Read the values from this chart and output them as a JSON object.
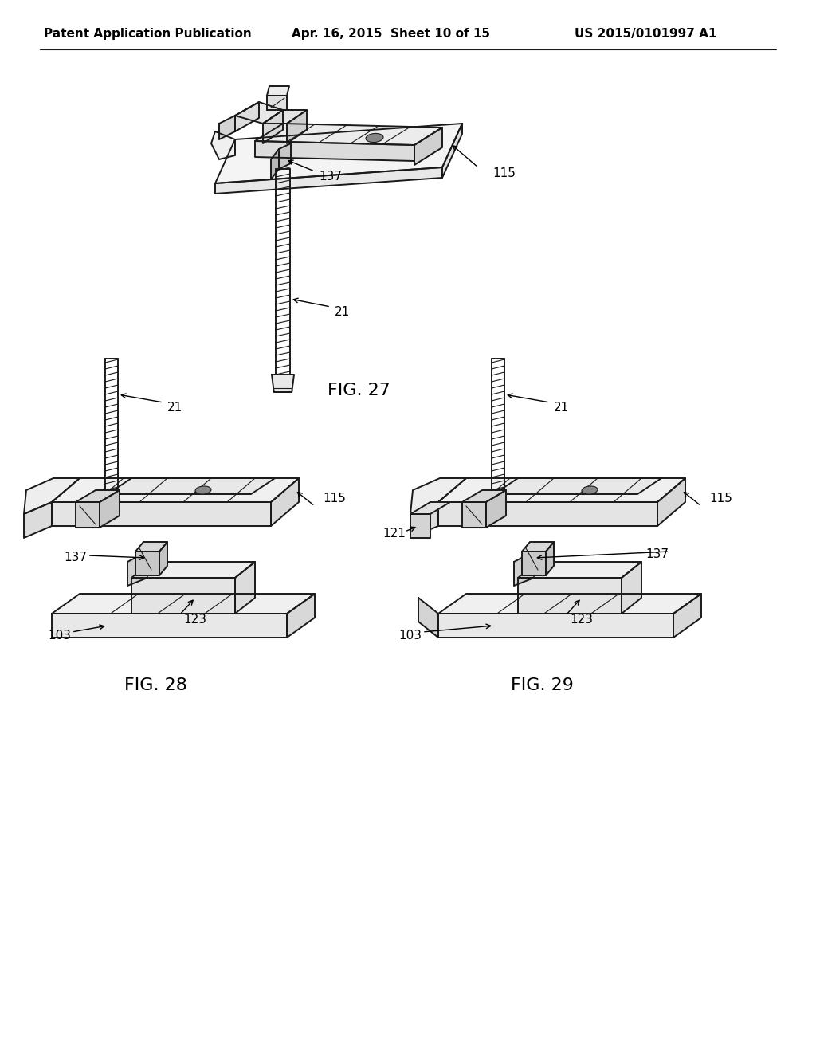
{
  "bg_color": "#ffffff",
  "fig_width": 10.24,
  "fig_height": 13.2,
  "dpi": 100,
  "header_left": "Patent Application Publication",
  "header_mid": "Apr. 16, 2015  Sheet 10 of 15",
  "header_right": "US 2015/0101997 A1",
  "header_fontsize": 11,
  "fig27_label": "FIG. 27",
  "fig28_label": "FIG. 28",
  "fig29_label": "FIG. 29",
  "label_fontsize": 16,
  "ref_fontsize": 11,
  "line_color": "#1a1a1a",
  "line_width": 1.4,
  "thin_lw": 0.8
}
